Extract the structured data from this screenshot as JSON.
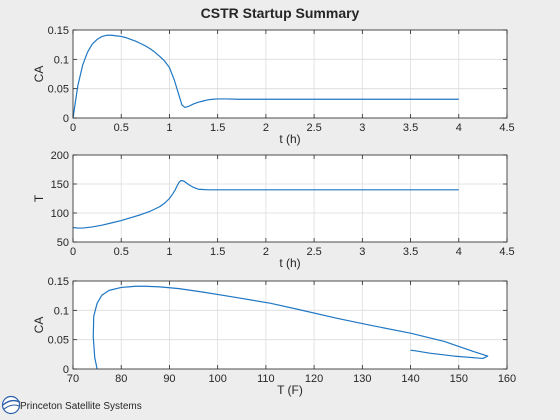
{
  "figure_title": "CSTR Startup Summary",
  "logo": {
    "text": "Princeton Satellite Systems",
    "icon": "pss-logo-icon"
  },
  "colors": {
    "line": "#1f77c4",
    "axes_bg": "#ffffff",
    "figure_bg": "#ededed",
    "grid": "#dcdcdc",
    "text": "#262626"
  },
  "chart_data": [
    {
      "type": "line",
      "title": "CSTR Startup Summary",
      "xlabel": "t (h)",
      "ylabel": "CA",
      "xlim": [
        0,
        4.5
      ],
      "ylim": [
        0,
        0.15
      ],
      "xticks": [
        "0",
        "0.5",
        "1",
        "1.5",
        "2",
        "2.5",
        "3",
        "3.5",
        "4",
        "4.5"
      ],
      "yticks": [
        "0",
        "0.05",
        "0.1",
        "0.15"
      ],
      "grid": true,
      "series": [
        {
          "x": [
            0,
            0.05,
            0.1,
            0.15,
            0.2,
            0.25,
            0.3,
            0.35,
            0.4,
            0.45,
            0.5,
            0.55,
            0.6,
            0.65,
            0.7,
            0.75,
            0.8,
            0.85,
            0.9,
            0.95,
            1.0,
            1.05,
            1.1,
            1.13,
            1.16,
            1.2,
            1.25,
            1.3,
            1.35,
            1.4,
            1.45,
            1.5,
            1.6,
            1.7,
            1.8,
            2.0,
            2.5,
            3.0,
            3.5,
            4.0
          ],
          "y": [
            0,
            0.055,
            0.09,
            0.112,
            0.126,
            0.134,
            0.139,
            0.141,
            0.141,
            0.14,
            0.139,
            0.137,
            0.134,
            0.131,
            0.127,
            0.123,
            0.118,
            0.112,
            0.105,
            0.097,
            0.086,
            0.065,
            0.038,
            0.022,
            0.018,
            0.02,
            0.024,
            0.027,
            0.029,
            0.031,
            0.032,
            0.0325,
            0.0325,
            0.032,
            0.032,
            0.032,
            0.032,
            0.032,
            0.032,
            0.032
          ]
        }
      ]
    },
    {
      "type": "line",
      "xlabel": "t (h)",
      "ylabel": "T",
      "xlim": [
        0,
        4.5
      ],
      "ylim": [
        50,
        200
      ],
      "xticks": [
        "0",
        "0.5",
        "1",
        "1.5",
        "2",
        "2.5",
        "3",
        "3.5",
        "4",
        "4.5"
      ],
      "yticks": [
        "50",
        "100",
        "150",
        "200"
      ],
      "grid": true,
      "series": [
        {
          "x": [
            0,
            0.05,
            0.1,
            0.2,
            0.3,
            0.4,
            0.5,
            0.6,
            0.7,
            0.8,
            0.9,
            0.95,
            1.0,
            1.03,
            1.06,
            1.08,
            1.1,
            1.12,
            1.15,
            1.2,
            1.25,
            1.3,
            1.4,
            1.5,
            1.7,
            2.0,
            3.0,
            4.0
          ],
          "y": [
            75,
            74,
            74,
            76,
            79,
            83,
            87,
            92,
            97,
            103,
            111,
            117,
            125,
            132,
            140,
            147,
            153,
            156,
            155,
            149,
            144,
            141,
            140,
            140,
            140,
            140,
            140,
            140
          ]
        }
      ]
    },
    {
      "type": "line",
      "xlabel": "T (F)",
      "ylabel": "CA",
      "xlim": [
        70,
        160
      ],
      "ylim": [
        0,
        0.15
      ],
      "xticks": [
        "70",
        "80",
        "90",
        "100",
        "110",
        "120",
        "130",
        "140",
        "150",
        "160"
      ],
      "yticks": [
        "0",
        "0.05",
        "0.1",
        "0.15"
      ],
      "grid": true,
      "series": [
        {
          "x": [
            75,
            74.5,
            74.2,
            74.3,
            75,
            76,
            77.5,
            80,
            83,
            85,
            88,
            92,
            97,
            103,
            111,
            117,
            125,
            132,
            140,
            147,
            153,
            156,
            155,
            149,
            144,
            141,
            140
          ],
          "y": [
            0,
            0.02,
            0.055,
            0.09,
            0.112,
            0.126,
            0.134,
            0.139,
            0.141,
            0.141,
            0.14,
            0.137,
            0.131,
            0.123,
            0.112,
            0.101,
            0.086,
            0.074,
            0.061,
            0.047,
            0.03,
            0.022,
            0.018,
            0.022,
            0.027,
            0.031,
            0.032
          ]
        }
      ]
    }
  ]
}
